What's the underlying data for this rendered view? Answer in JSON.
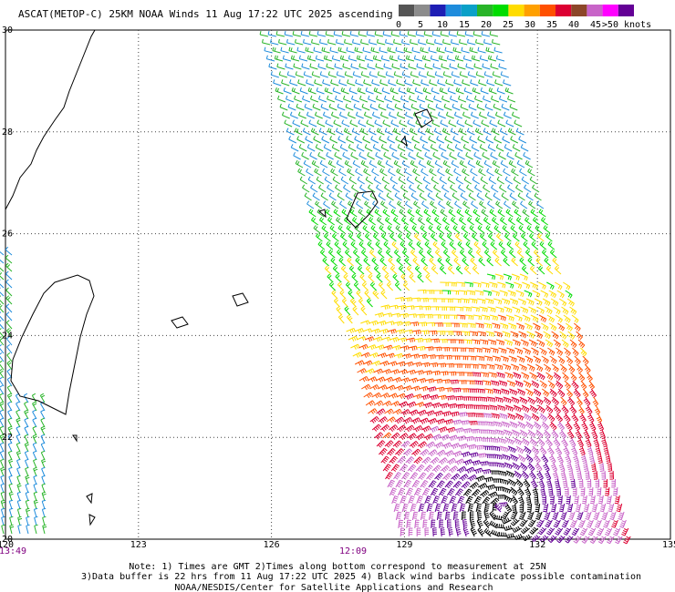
{
  "header": {
    "title": "ASCAT(METOP-C) 25KM NOAA Winds 11 Aug 17:22 UTC 2025 ascending"
  },
  "legend": {
    "labels": [
      "0",
      "5",
      "10",
      "15",
      "20",
      "25",
      "30",
      "35",
      "40",
      "45",
      ">50 knots"
    ],
    "colors": [
      "#555555",
      "#8c8c8c",
      "#1e1eb4",
      "#1e8cdc",
      "#0aa0c8",
      "#28b428",
      "#00dc00",
      "#ffdc00",
      "#ffa000",
      "#ff5000",
      "#dc0032",
      "#8c4628",
      "#c864c8",
      "#ff00ff",
      "#640096"
    ]
  },
  "map": {
    "lon_labels": [
      "120",
      "123",
      "126",
      "129",
      "132",
      "135"
    ],
    "lat_labels": [
      "30",
      "28",
      "26",
      "24",
      "22",
      "20"
    ],
    "times": [
      "13:49",
      "12:09"
    ]
  },
  "notes": [
    "Note: 1) Times are GMT 2)Times along bottom correspond to measurement at 25N",
    "3)Data buffer is 22 hrs from 11 Aug 17:22 UTC 2025 4) Black wind barbs indicate possible contamination",
    "NOAA/NESDIS/Center for Satellite Applications and Research"
  ]
}
